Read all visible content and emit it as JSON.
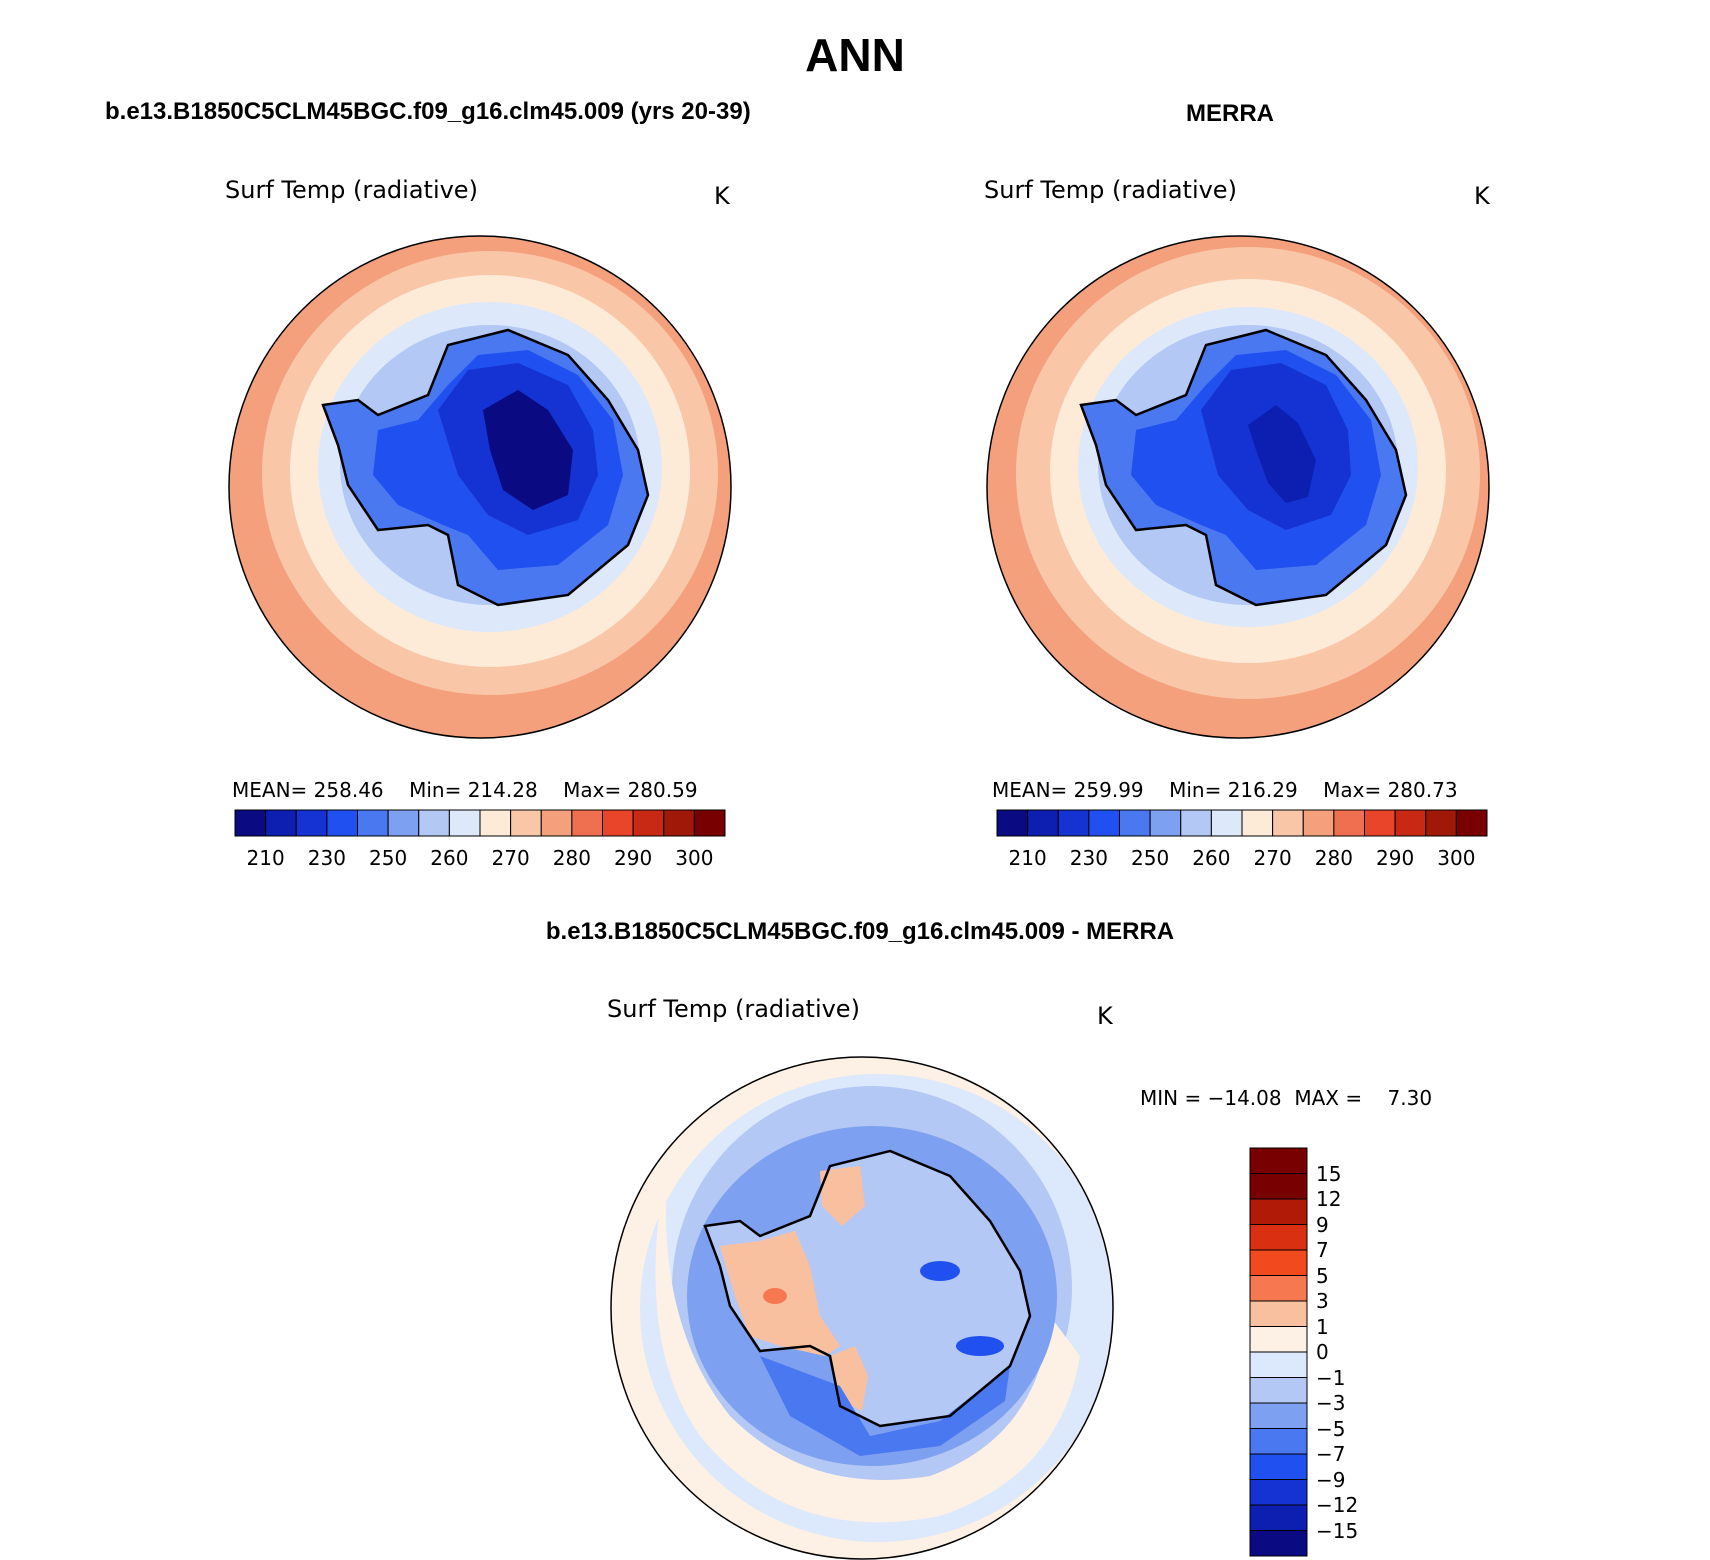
{
  "title": "ANN",
  "panels": {
    "model": {
      "header": "b.e13.B1850C5CLM45BGC.f09_g16.clm45.009 (yrs 20-39)",
      "variable": "Surf Temp (radiative)",
      "units": "K",
      "stats": {
        "mean_label": "MEAN=",
        "mean": "258.46",
        "min_label": "Min=",
        "min": "214.28",
        "max_label": "Max=",
        "max": "280.59"
      }
    },
    "obs": {
      "header": "MERRA",
      "variable": "Surf Temp (radiative)",
      "units": "K",
      "stats": {
        "mean_label": "MEAN=",
        "mean": "259.99",
        "min_label": "Min=",
        "min": "216.29",
        "max_label": "Max=",
        "max": "280.73"
      }
    },
    "diff": {
      "header": "b.e13.B1850C5CLM45BGC.f09_g16.clm45.009 - MERRA",
      "variable": "Surf Temp (radiative)",
      "units": "K",
      "stats": {
        "min_label": "MIN =",
        "min": "−14.08",
        "max_label": "MAX =",
        "max": "7.30"
      }
    }
  },
  "colorbar_abs": {
    "colors": [
      "#0a0a82",
      "#0c1fb0",
      "#1433d2",
      "#2050f0",
      "#4a78f0",
      "#7ea0f0",
      "#b4c8f5",
      "#dde8fb",
      "#fdebd8",
      "#f9c6a8",
      "#f4a07c",
      "#ef7050",
      "#e8452a",
      "#c82814",
      "#a01808",
      "#780000"
    ],
    "ticks": [
      "210",
      "230",
      "250",
      "260",
      "270",
      "280",
      "290",
      "300"
    ]
  },
  "colorbar_diff": {
    "colors": [
      "#780000",
      "#b01a06",
      "#d83010",
      "#f04a1e",
      "#f57850",
      "#f9c0a0",
      "#fdf0e4",
      "#dce8fb",
      "#b4c8f5",
      "#7ea0f0",
      "#4a78f0",
      "#2050f0",
      "#1433d2",
      "#0c1fb0",
      "#0a0a82"
    ],
    "ticks": [
      "15",
      "12",
      "9",
      "7",
      "5",
      "3",
      "1",
      "0",
      "−1",
      "−3",
      "−5",
      "−7",
      "−9",
      "−12",
      "−15"
    ]
  }
}
